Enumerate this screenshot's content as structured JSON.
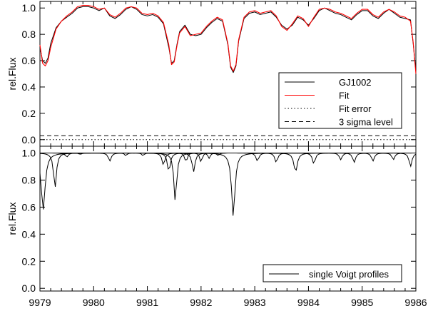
{
  "chart_data": [
    {
      "type": "line",
      "panel": "top",
      "title": "",
      "xlabel": "",
      "ylabel": "rel.Flux",
      "xlim": [
        9979,
        9986
      ],
      "ylim": [
        -0.05,
        1.05
      ],
      "yticks": [
        0.0,
        0.2,
        0.4,
        0.6,
        0.8,
        1.0
      ],
      "ytick_labels": [
        "0.0",
        "0.2",
        "0.4",
        "0.6",
        "0.8",
        "1.0"
      ],
      "grid": false,
      "legend": {
        "placement": "middle-right",
        "entries": [
          {
            "label": "GJ1002",
            "color": "#000000",
            "style": "solid"
          },
          {
            "label": "Fit",
            "color": "#ff0000",
            "style": "solid"
          },
          {
            "label": "Fit error",
            "color": "#000000",
            "style": "dotted"
          },
          {
            "label": "3 sigma level",
            "color": "#000000",
            "style": "dashed"
          }
        ]
      },
      "series": [
        {
          "name": "GJ1002",
          "color": "#000000",
          "style": "solid",
          "x": [
            9979.0,
            9979.05,
            9979.1,
            9979.15,
            9979.2,
            9979.3,
            9979.4,
            9979.5,
            9979.6,
            9979.7,
            9979.8,
            9979.9,
            9980.0,
            9980.1,
            9980.2,
            9980.3,
            9980.4,
            9980.5,
            9980.6,
            9980.7,
            9980.8,
            9980.9,
            9981.0,
            9981.1,
            9981.2,
            9981.3,
            9981.4,
            9981.45,
            9981.5,
            9981.55,
            9981.6,
            9981.7,
            9981.8,
            9981.9,
            9982.0,
            9982.1,
            9982.2,
            9982.3,
            9982.4,
            9982.5,
            9982.55,
            9982.6,
            9982.65,
            9982.7,
            9982.8,
            9982.9,
            9983.0,
            9983.1,
            9983.2,
            9983.3,
            9983.4,
            9983.5,
            9983.6,
            9983.7,
            9983.8,
            9983.9,
            9984.0,
            9984.1,
            9984.2,
            9984.3,
            9984.4,
            9984.5,
            9984.6,
            9984.7,
            9984.8,
            9984.9,
            9985.0,
            9985.1,
            9985.2,
            9985.3,
            9985.4,
            9985.5,
            9985.6,
            9985.7,
            9985.8,
            9985.9,
            9985.95,
            9986.0
          ],
          "y": [
            0.7,
            0.6,
            0.58,
            0.62,
            0.73,
            0.85,
            0.9,
            0.93,
            0.96,
            1.0,
            1.01,
            1.01,
            1.0,
            0.98,
            1.0,
            0.94,
            0.92,
            0.95,
            0.99,
            1.01,
            0.99,
            0.95,
            0.94,
            0.95,
            0.93,
            0.88,
            0.7,
            0.58,
            0.6,
            0.72,
            0.82,
            0.87,
            0.8,
            0.79,
            0.8,
            0.85,
            0.89,
            0.92,
            0.9,
            0.72,
            0.55,
            0.51,
            0.56,
            0.75,
            0.92,
            0.96,
            0.97,
            0.95,
            0.96,
            0.97,
            0.93,
            0.87,
            0.84,
            0.87,
            0.93,
            0.91,
            0.87,
            0.92,
            0.98,
            1.0,
            0.98,
            0.96,
            0.95,
            0.93,
            0.91,
            0.95,
            0.98,
            0.98,
            0.94,
            0.92,
            0.96,
            0.99,
            0.96,
            0.93,
            0.92,
            0.91,
            0.73,
            0.52
          ]
        },
        {
          "name": "Fit",
          "color": "#ff0000",
          "style": "solid",
          "x": [
            9979.0,
            9979.05,
            9979.1,
            9979.15,
            9979.2,
            9979.3,
            9979.4,
            9979.5,
            9979.6,
            9979.7,
            9979.8,
            9979.9,
            9980.0,
            9980.1,
            9980.2,
            9980.3,
            9980.4,
            9980.5,
            9980.6,
            9980.7,
            9980.8,
            9980.9,
            9981.0,
            9981.1,
            9981.2,
            9981.3,
            9981.4,
            9981.45,
            9981.5,
            9981.55,
            9981.6,
            9981.7,
            9981.8,
            9981.9,
            9982.0,
            9982.1,
            9982.2,
            9982.3,
            9982.4,
            9982.5,
            9982.55,
            9982.6,
            9982.65,
            9982.7,
            9982.8,
            9982.9,
            9983.0,
            9983.1,
            9983.2,
            9983.3,
            9983.4,
            9983.5,
            9983.6,
            9983.7,
            9983.8,
            9983.9,
            9984.0,
            9984.1,
            9984.2,
            9984.3,
            9984.4,
            9984.5,
            9984.6,
            9984.7,
            9984.8,
            9984.9,
            9985.0,
            9985.1,
            9985.2,
            9985.3,
            9985.4,
            9985.5,
            9985.6,
            9985.7,
            9985.8,
            9985.9,
            9985.95,
            9986.0
          ],
          "y": [
            0.72,
            0.58,
            0.56,
            0.6,
            0.7,
            0.84,
            0.9,
            0.94,
            0.97,
            1.01,
            1.02,
            1.02,
            1.01,
            0.99,
            1.0,
            0.95,
            0.93,
            0.96,
            1.0,
            1.01,
            1.0,
            0.96,
            0.95,
            0.96,
            0.94,
            0.89,
            0.72,
            0.57,
            0.59,
            0.71,
            0.81,
            0.86,
            0.79,
            0.8,
            0.81,
            0.86,
            0.9,
            0.93,
            0.91,
            0.73,
            0.56,
            0.52,
            0.57,
            0.76,
            0.93,
            0.97,
            0.98,
            0.96,
            0.97,
            0.98,
            0.94,
            0.86,
            0.83,
            0.88,
            0.94,
            0.92,
            0.86,
            0.93,
            0.99,
            1.0,
            0.99,
            0.97,
            0.96,
            0.94,
            0.92,
            0.96,
            0.99,
            0.99,
            0.95,
            0.93,
            0.97,
            0.99,
            0.97,
            0.94,
            0.93,
            0.9,
            0.74,
            0.5
          ]
        },
        {
          "name": "Fit error",
          "color": "#000000",
          "style": "dotted",
          "x": [
            9979.0,
            9986.0
          ],
          "y": [
            0.0,
            0.0
          ]
        },
        {
          "name": "3 sigma level",
          "color": "#000000",
          "style": "dashed",
          "x": [
            9979.0,
            9986.0
          ],
          "y": [
            0.03,
            0.03
          ]
        }
      ]
    },
    {
      "type": "line",
      "panel": "bottom",
      "title": "",
      "xlabel": "",
      "ylabel": "rel.Flux",
      "xlim": [
        9979,
        9986
      ],
      "ylim": [
        -0.02,
        1.05
      ],
      "xticks": [
        9979,
        9980,
        9981,
        9982,
        9983,
        9984,
        9985,
        9986
      ],
      "xtick_labels": [
        "9979",
        "9980",
        "9981",
        "9982",
        "9983",
        "9984",
        "9985",
        "9986"
      ],
      "yticks": [
        0.0,
        0.2,
        0.4,
        0.6,
        0.8,
        1.0
      ],
      "ytick_labels": [
        "0.0",
        "0.2",
        "0.4",
        "0.6",
        "0.8",
        "1.0"
      ],
      "grid": false,
      "legend": {
        "placement": "bottom-right",
        "entries": [
          {
            "label": "single Voigt profiles",
            "color": "#000000",
            "style": "solid"
          }
        ]
      },
      "series": [
        {
          "name": "single Voigt profiles",
          "color": "#000000",
          "style": "solid",
          "profiles": [
            {
              "center": 9979.06,
              "depth": 0.42,
              "width": 0.07
            },
            {
              "center": 9979.28,
              "depth": 0.26,
              "width": 0.05
            },
            {
              "center": 9979.5,
              "depth": 0.03,
              "width": 0.05
            },
            {
              "center": 9979.75,
              "depth": 0.01,
              "width": 0.05
            },
            {
              "center": 9980.3,
              "depth": 0.06,
              "width": 0.05
            },
            {
              "center": 9980.6,
              "depth": 0.02,
              "width": 0.04
            },
            {
              "center": 9980.92,
              "depth": 0.02,
              "width": 0.04
            },
            {
              "center": 9981.3,
              "depth": 0.09,
              "width": 0.05
            },
            {
              "center": 9981.4,
              "depth": 0.14,
              "width": 0.05
            },
            {
              "center": 9981.52,
              "depth": 0.36,
              "width": 0.05
            },
            {
              "center": 9981.72,
              "depth": 0.07,
              "width": 0.04
            },
            {
              "center": 9981.86,
              "depth": 0.14,
              "width": 0.05
            },
            {
              "center": 9982.0,
              "depth": 0.07,
              "width": 0.04
            },
            {
              "center": 9982.15,
              "depth": 0.04,
              "width": 0.04
            },
            {
              "center": 9982.32,
              "depth": 0.02,
              "width": 0.04
            },
            {
              "center": 9982.6,
              "depth": 0.47,
              "width": 0.06
            },
            {
              "center": 9983.05,
              "depth": 0.06,
              "width": 0.05
            },
            {
              "center": 9983.4,
              "depth": 0.07,
              "width": 0.05
            },
            {
              "center": 9983.76,
              "depth": 0.14,
              "width": 0.06
            },
            {
              "center": 9984.1,
              "depth": 0.08,
              "width": 0.05
            },
            {
              "center": 9984.6,
              "depth": 0.05,
              "width": 0.05
            },
            {
              "center": 9984.85,
              "depth": 0.07,
              "width": 0.05
            },
            {
              "center": 9985.2,
              "depth": 0.06,
              "width": 0.05
            },
            {
              "center": 9985.58,
              "depth": 0.05,
              "width": 0.05
            },
            {
              "center": 9985.9,
              "depth": 0.1,
              "width": 0.05
            }
          ]
        }
      ]
    }
  ]
}
